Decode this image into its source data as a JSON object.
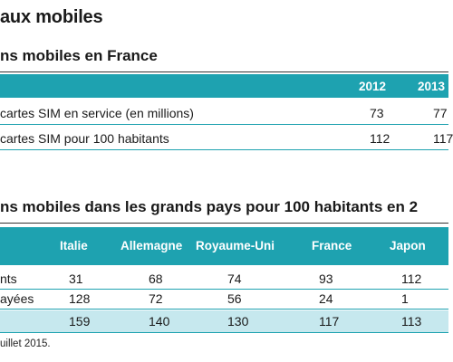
{
  "section": {
    "title": "aux mobiles"
  },
  "table1": {
    "title": "ns mobiles en France",
    "years": [
      "2012",
      "2013"
    ],
    "rows": [
      {
        "label": "cartes SIM en service (en millions)",
        "values": [
          "73",
          "77"
        ]
      },
      {
        "label": "cartes SIM pour 100 habitants",
        "values": [
          "112",
          "117"
        ]
      }
    ]
  },
  "table2": {
    "title": "ns mobiles dans les grands pays pour 100 habitants en 2",
    "columns": [
      "Italie",
      "Allemagne",
      "Royaume-Uni",
      "France",
      "Japon"
    ],
    "rows": [
      {
        "label": "nts",
        "values": [
          "31",
          "68",
          "74",
          "93",
          "112"
        ]
      },
      {
        "label": "ayées",
        "values": [
          "128",
          "72",
          "56",
          "24",
          "1"
        ]
      },
      {
        "label": "",
        "values": [
          "159",
          "140",
          "130",
          "117",
          "113"
        ]
      }
    ]
  },
  "note": "uillet 2015.",
  "colors": {
    "header_teal": "#1ea2b0",
    "total_row": "#c6e8ee"
  }
}
